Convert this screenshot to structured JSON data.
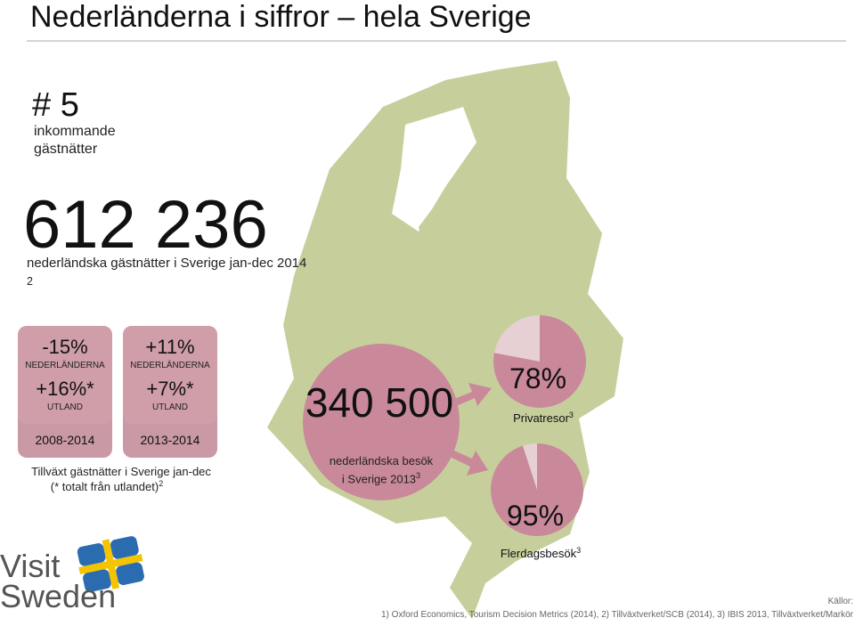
{
  "header": {
    "title": "Nederländerna i siffror – hela Sverige"
  },
  "rank": {
    "number": "# 5",
    "label": "inkommande gästnätter"
  },
  "guest_nights": {
    "number": "612 236",
    "caption": "nederländska gästnätter i Sverige jan-dec 2014",
    "sup": "2"
  },
  "growth_boxes": [
    {
      "nl": "-15%",
      "nl_label": "NEDERLÄNDERNA",
      "abroad": "+16%*",
      "abroad_label": "UTLAND",
      "period": "2008-2014"
    },
    {
      "nl": "+11%",
      "nl_label": "NEDERLÄNDERNA",
      "abroad": "+7%*",
      "abroad_label": "UTLAND",
      "period": "2013-2014"
    }
  ],
  "growth_note": {
    "line1": "Tillväxt gästnätter i Sverige jan-dec",
    "line2": "(* totalt från utlandet)",
    "sup": "2"
  },
  "visits": {
    "number": "340 500",
    "caption": "nederländska besök i Sverige 2013",
    "sup": "3"
  },
  "pies": [
    {
      "value": 78,
      "value_label": "78%",
      "caption": "Privatresor",
      "sup": "3"
    },
    {
      "value": 95,
      "value_label": "95%",
      "caption": "Flerdagsbesök",
      "sup": "3"
    }
  ],
  "logo": {
    "line1": "Visit",
    "line2": "Sweden"
  },
  "sources": {
    "label": "Källor:",
    "text": "1) Oxford Economics, Tourism Decision Metrics (2014), 2) Tillväxtverket/SCB (2014), 3) IBIS 2013, Tillväxtverket/Markör"
  }
}
